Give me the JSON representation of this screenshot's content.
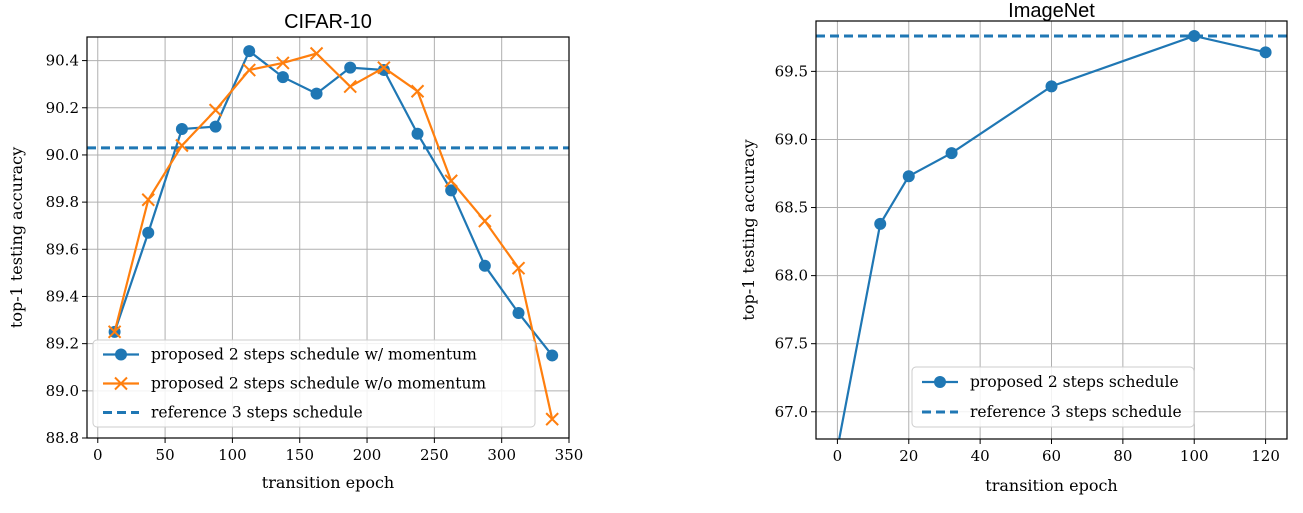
{
  "chart_data": [
    {
      "type": "line",
      "title": "CIFAR-10",
      "xlabel": "transition epoch",
      "ylabel": "top-1 testing accuracy",
      "xlim": [
        -8,
        350
      ],
      "ylim": [
        88.8,
        90.5
      ],
      "xticks": [
        0,
        50,
        100,
        150,
        200,
        250,
        300,
        350
      ],
      "yticks": [
        88.8,
        89.0,
        89.2,
        89.4,
        89.6,
        89.8,
        90.0,
        90.2,
        90.4
      ],
      "ytick_decimals": 1,
      "grid": true,
      "legend_position": "lower-left",
      "series": [
        {
          "name": "proposed 2 steps schedule w/ momentum",
          "color": "#1f77b4",
          "marker": "circle",
          "x": [
            12.5,
            37.5,
            62.5,
            87.5,
            112.5,
            137.5,
            162.5,
            187.5,
            212.5,
            237.5,
            262.5,
            287.5,
            312.5,
            337.5
          ],
          "y": [
            89.25,
            89.67,
            90.11,
            90.12,
            90.44,
            90.33,
            90.26,
            90.37,
            90.36,
            90.09,
            89.85,
            89.53,
            89.33,
            89.15
          ]
        },
        {
          "name": "proposed 2 steps schedule w/o momentum",
          "color": "#ff7f0e",
          "marker": "x",
          "x": [
            12.5,
            37.5,
            62.5,
            87.5,
            112.5,
            137.5,
            162.5,
            187.5,
            212.5,
            237.5,
            262.5,
            287.5,
            312.5,
            337.5
          ],
          "y": [
            89.25,
            89.81,
            90.04,
            90.19,
            90.36,
            90.39,
            90.43,
            90.29,
            90.37,
            90.27,
            89.89,
            89.72,
            89.52,
            88.88
          ]
        }
      ],
      "reference": {
        "name": "reference 3 steps schedule",
        "color": "#1f77b4",
        "y": 90.03
      }
    },
    {
      "type": "line",
      "title": "ImageNet",
      "xlabel": "transition epoch",
      "ylabel": "top-1 testing accuracy",
      "xlim": [
        -6,
        126
      ],
      "ylim": [
        66.8,
        69.87
      ],
      "xticks": [
        0,
        20,
        40,
        60,
        80,
        100,
        120
      ],
      "yticks": [
        67.0,
        67.5,
        68.0,
        68.5,
        69.0,
        69.5
      ],
      "ytick_decimals": 1,
      "grid": true,
      "legend_position": "lower-center",
      "series": [
        {
          "name": "proposed 2 steps schedule",
          "color": "#1f77b4",
          "marker": "circle",
          "x": [
            0,
            12,
            20,
            32,
            60,
            100,
            120
          ],
          "y": [
            66.73,
            68.38,
            68.73,
            68.9,
            69.39,
            69.76,
            69.64
          ]
        }
      ],
      "reference": {
        "name": "reference 3 steps schedule",
        "color": "#1f77b4",
        "y": 69.76
      }
    }
  ]
}
